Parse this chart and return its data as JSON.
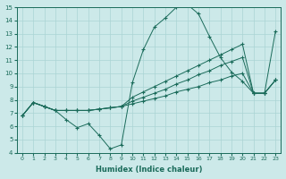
{
  "xlabel": "Humidex (Indice chaleur)",
  "xlim": [
    -0.5,
    23.5
  ],
  "ylim": [
    4,
    15
  ],
  "yticks": [
    4,
    5,
    6,
    7,
    8,
    9,
    10,
    11,
    12,
    13,
    14,
    15
  ],
  "xticks": [
    0,
    1,
    2,
    3,
    4,
    5,
    6,
    7,
    8,
    9,
    10,
    11,
    12,
    13,
    14,
    15,
    16,
    17,
    18,
    19,
    20,
    21,
    22,
    23
  ],
  "background_color": "#cce9e9",
  "grid_color": "#aad4d4",
  "line_color": "#1a6b5a",
  "line1": {
    "x": [
      0,
      1,
      2,
      3,
      4,
      5,
      6,
      7,
      8,
      9,
      10,
      11,
      12,
      13,
      14,
      15,
      16,
      17,
      18,
      19,
      20,
      21,
      22,
      23
    ],
    "y": [
      6.8,
      7.8,
      7.5,
      7.2,
      6.5,
      5.9,
      6.2,
      5.3,
      4.3,
      4.6,
      9.3,
      11.8,
      13.5,
      14.2,
      15.0,
      15.2,
      14.5,
      12.8,
      11.2,
      10.1,
      9.4,
      8.5,
      8.5,
      13.2
    ]
  },
  "line2": {
    "x": [
      0,
      1,
      2,
      3,
      4,
      5,
      6,
      7,
      8,
      9,
      10,
      11,
      12,
      13,
      14,
      15,
      16,
      17,
      18,
      19,
      20,
      21,
      22,
      23
    ],
    "y": [
      6.8,
      7.8,
      7.5,
      7.2,
      7.2,
      7.2,
      7.2,
      7.3,
      7.4,
      7.5,
      7.7,
      7.9,
      8.1,
      8.3,
      8.6,
      8.8,
      9.0,
      9.3,
      9.5,
      9.8,
      10.0,
      8.5,
      8.5,
      9.5
    ]
  },
  "line3": {
    "x": [
      0,
      1,
      2,
      3,
      4,
      5,
      6,
      7,
      8,
      9,
      10,
      11,
      12,
      13,
      14,
      15,
      16,
      17,
      18,
      19,
      20,
      21,
      22,
      23
    ],
    "y": [
      6.8,
      7.8,
      7.5,
      7.2,
      7.2,
      7.2,
      7.2,
      7.3,
      7.4,
      7.5,
      7.9,
      8.2,
      8.5,
      8.8,
      9.2,
      9.5,
      9.9,
      10.2,
      10.6,
      10.9,
      11.2,
      8.5,
      8.5,
      9.5
    ]
  },
  "line4": {
    "x": [
      0,
      1,
      2,
      3,
      4,
      5,
      6,
      7,
      8,
      9,
      10,
      11,
      12,
      13,
      14,
      15,
      16,
      17,
      18,
      19,
      20,
      21,
      22,
      23
    ],
    "y": [
      6.8,
      7.8,
      7.5,
      7.2,
      7.2,
      7.2,
      7.2,
      7.3,
      7.4,
      7.5,
      8.2,
      8.6,
      9.0,
      9.4,
      9.8,
      10.2,
      10.6,
      11.0,
      11.4,
      11.8,
      12.2,
      8.5,
      8.5,
      9.5
    ]
  }
}
